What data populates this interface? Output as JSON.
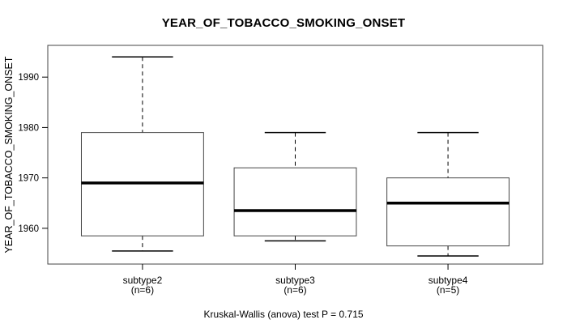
{
  "title": "YEAR_OF_TOBACCO_SMOKING_ONSET",
  "y_axis_label": "YEAR_OF_TOBACCO_SMOKING_ONSET",
  "footer": "Kruskal-Wallis (anova) test P = 0.715",
  "colors": {
    "background": "#ffffff",
    "frame_stroke": "#454545",
    "box_stroke": "#454545",
    "line_stroke": "#000000",
    "text": "#000000",
    "box_fill": "#ffffff"
  },
  "chart_data": {
    "type": "boxplot",
    "title": "YEAR_OF_TOBACCO_SMOKING_ONSET",
    "ylabel": "YEAR_OF_TOBACCO_SMOKING_ONSET",
    "annotation": "Kruskal-Wallis (anova) test P = 0.715",
    "test_name": "Kruskal-Wallis (anova) test",
    "p_value": 0.715,
    "ylim": [
      1952.9,
      1996.3
    ],
    "yticks": [
      1960,
      1970,
      1980,
      1990
    ],
    "grid": false,
    "legend": "none",
    "groups": [
      {
        "label": "subtype2",
        "sublabel": "(n=6)",
        "n": 6,
        "whisker_low": 1955.5,
        "q1": 1958.5,
        "median": 1969,
        "q3": 1979,
        "whisker_high": 1994
      },
      {
        "label": "subtype3",
        "sublabel": "(n=6)",
        "n": 6,
        "whisker_low": 1957.5,
        "q1": 1958.5,
        "median": 1963.5,
        "q3": 1972,
        "whisker_high": 1979
      },
      {
        "label": "subtype4",
        "sublabel": "(n=5)",
        "n": 5,
        "whisker_low": 1954.5,
        "q1": 1956.5,
        "median": 1965,
        "q3": 1970,
        "whisker_high": 1979
      }
    ]
  }
}
